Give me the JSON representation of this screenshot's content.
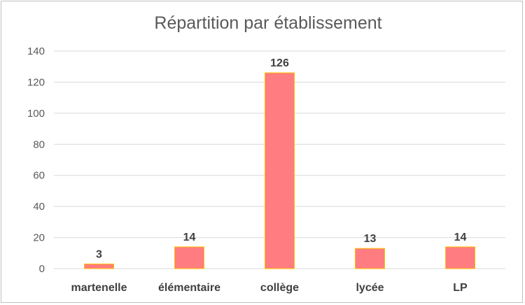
{
  "chart_data": {
    "type": "bar",
    "title": "Répartition par établissement",
    "categories": [
      "martenelle",
      "élémentaire",
      "collège",
      "lycée",
      "LP"
    ],
    "values": [
      3,
      14,
      126,
      13,
      14
    ],
    "ylim": [
      0,
      140
    ],
    "yticks": [
      0,
      20,
      40,
      60,
      80,
      100,
      120,
      140
    ],
    "xlabel": "",
    "ylabel": "",
    "grid": true,
    "legend": "none",
    "colors": {
      "bar_fill": "#ff7c80",
      "bar_border": "#ffc000",
      "grid": "#d9d9d9"
    }
  }
}
